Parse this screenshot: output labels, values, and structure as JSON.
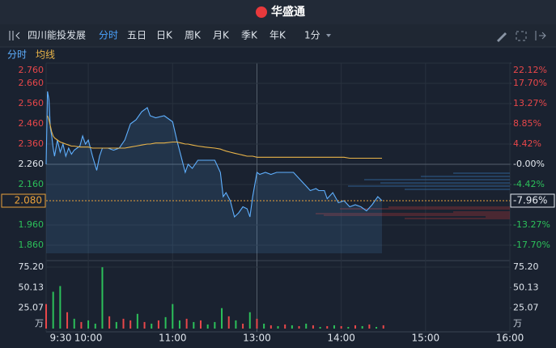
{
  "header": {
    "logo": "华盛通"
  },
  "toolbar": {
    "stock_name": "四川能投发展",
    "tabs": [
      "分时",
      "五日",
      "日K",
      "周K",
      "月K",
      "季K",
      "年K"
    ],
    "interval": "1分"
  },
  "subtabs": [
    "分时",
    "均线"
  ],
  "chart_data": [
    {
      "type": "line",
      "x": [
        0,
        1,
        2,
        3,
        4,
        5,
        6,
        8,
        10,
        12,
        14,
        16,
        18,
        20,
        24,
        26,
        28,
        30,
        33,
        36,
        38,
        40,
        44,
        48,
        52,
        56,
        60,
        64,
        68,
        72,
        74,
        78,
        84,
        90,
        93,
        96,
        99,
        101,
        104,
        108,
        113,
        120,
        124,
        126,
        128,
        131,
        134,
        137,
        140,
        143,
        145,
        147,
        150,
        152,
        156,
        160,
        164,
        170,
        176,
        180,
        184,
        188,
        192,
        194,
        198,
        200,
        204,
        208,
        212,
        216,
        220,
        224,
        228,
        232,
        236,
        239
      ],
      "series": [
        {
          "name": "分时",
          "color": "#5fb0ff",
          "values": [
            2.26,
            2.62,
            2.58,
            2.44,
            2.4,
            2.34,
            2.3,
            2.38,
            2.32,
            2.36,
            2.3,
            2.34,
            2.31,
            2.33,
            2.35,
            2.4,
            2.36,
            2.38,
            2.3,
            2.23,
            2.3,
            2.34,
            2.34,
            2.33,
            2.34,
            2.38,
            2.46,
            2.48,
            2.52,
            2.54,
            2.5,
            2.49,
            2.5,
            2.47,
            2.38,
            2.3,
            2.22,
            2.26,
            2.24,
            2.28,
            2.28,
            2.28,
            2.22,
            2.1,
            2.12,
            2.08,
            2.0,
            2.02,
            2.05,
            2.04,
            2.0,
            2.1,
            2.22,
            2.21,
            2.22,
            2.21,
            2.22,
            2.22,
            2.22,
            2.19,
            2.16,
            2.13,
            2.14,
            2.13,
            2.13,
            2.09,
            2.12,
            2.07,
            2.08,
            2.05,
            2.06,
            2.05,
            2.03,
            2.06,
            2.1,
            2.08
          ]
        },
        {
          "name": "均线",
          "color": "#e9b449",
          "values": [
            null,
            2.5,
            2.48,
            2.45,
            2.42,
            2.4,
            2.39,
            2.38,
            2.37,
            2.365,
            2.36,
            2.355,
            2.35,
            2.35,
            2.345,
            2.345,
            2.345,
            2.345,
            2.34,
            2.34,
            2.34,
            2.34,
            2.34,
            2.34,
            2.34,
            2.34,
            2.345,
            2.35,
            2.355,
            2.36,
            2.36,
            2.365,
            2.365,
            2.37,
            2.37,
            2.365,
            2.36,
            2.36,
            2.355,
            2.35,
            2.345,
            2.34,
            2.335,
            2.33,
            2.325,
            2.32,
            2.315,
            2.31,
            2.305,
            2.3,
            2.3,
            2.3,
            2.295,
            2.295,
            2.295,
            2.295,
            2.295,
            2.295,
            2.295,
            2.295,
            2.295,
            2.295,
            2.295,
            2.295,
            2.295,
            2.295,
            2.295,
            2.295,
            2.295,
            2.29,
            2.29,
            2.29,
            2.29,
            2.29,
            2.29,
            2.29
          ]
        }
      ],
      "xlim": [
        0,
        330
      ],
      "xticks": [
        {
          "value": 0,
          "label": "9:30"
        },
        {
          "value": 30,
          "label": "10:00"
        },
        {
          "value": 90,
          "label": "11:00"
        },
        {
          "value": 150,
          "label": "13:00"
        },
        {
          "value": 210,
          "label": "14:00"
        },
        {
          "value": 270,
          "label": "15:00"
        },
        {
          "value": 330,
          "label": "16:00"
        }
      ],
      "ylim": [
        1.82,
        2.76
      ],
      "yticks": [
        {
          "value": 2.76,
          "label": "2.760"
        },
        {
          "value": 2.66,
          "label": "2.660"
        },
        {
          "value": 2.56,
          "label": "2.560"
        },
        {
          "value": 2.46,
          "label": "2.460"
        },
        {
          "value": 2.36,
          "label": "2.360"
        },
        {
          "value": 2.26,
          "label": "2.260"
        },
        {
          "value": 2.16,
          "label": "2.160"
        },
        {
          "value": 1.96,
          "label": "1.960"
        },
        {
          "value": 1.86,
          "label": "1.860"
        }
      ],
      "y2lim": [
        -19.47,
        22.12
      ],
      "y2ticks": [
        {
          "value": 22.12,
          "label": "22.12%"
        },
        {
          "value": 17.7,
          "label": "17.70%"
        },
        {
          "value": 13.27,
          "label": "13.27%"
        },
        {
          "value": 8.85,
          "label": "8.85%"
        },
        {
          "value": 4.42,
          "label": "4.42%"
        },
        {
          "value": 0,
          "label": "-0.00%"
        },
        {
          "value": -4.42,
          "label": "-4.42%"
        },
        {
          "value": -13.27,
          "label": "-13.27%"
        },
        {
          "value": -17.7,
          "label": "-17.70%"
        }
      ],
      "last_price": {
        "value": 2.08,
        "label": "2.080"
      },
      "last_change": {
        "value": -7.96,
        "label": "-7.96%"
      },
      "grid": true
    },
    {
      "type": "bar",
      "x": [
        0,
        5,
        10,
        15,
        20,
        25,
        30,
        35,
        40,
        45,
        50,
        55,
        60,
        65,
        70,
        75,
        80,
        85,
        90,
        95,
        100,
        105,
        110,
        115,
        120,
        125,
        130,
        135,
        140,
        145,
        150,
        155,
        160,
        165,
        170,
        175,
        180,
        185,
        190,
        195,
        200,
        205,
        210,
        215,
        220,
        225,
        230,
        235,
        240
      ],
      "values": [
        30,
        45,
        52,
        20,
        12,
        8,
        10,
        6,
        75,
        15,
        8,
        12,
        10,
        18,
        8,
        6,
        10,
        14,
        30,
        10,
        12,
        8,
        10,
        5,
        8,
        25,
        15,
        10,
        6,
        20,
        12,
        6,
        4,
        3,
        5,
        4,
        3,
        6,
        4,
        2,
        3,
        4,
        3,
        2,
        4,
        3,
        5,
        2,
        4
      ],
      "colors": [
        "#e8474a",
        "#2cc05a",
        "#2cc05a",
        "#e8474a",
        "#2cc05a",
        "#e8474a",
        "#2cc05a",
        "#2cc05a",
        "#2cc05a",
        "#e8474a",
        "#2cc05a",
        "#e8474a",
        "#e8474a",
        "#2cc05a",
        "#e8474a",
        "#2cc05a",
        "#e8474a",
        "#2cc05a",
        "#2cc05a",
        "#2cc05a",
        "#e8474a",
        "#2cc05a",
        "#e8474a",
        "#2cc05a",
        "#2cc05a",
        "#2cc05a",
        "#e8474a",
        "#2cc05a",
        "#e8474a",
        "#2cc05a",
        "#e8474a",
        "#2cc05a",
        "#e8474a",
        "#2cc05a",
        "#e8474a",
        "#2cc05a",
        "#e8474a",
        "#2cc05a",
        "#e8474a",
        "#2cc05a",
        "#e8474a",
        "#2cc05a",
        "#e8474a",
        "#2cc05a",
        "#e8474a",
        "#2cc05a",
        "#e8474a",
        "#2cc05a",
        "#e8474a"
      ],
      "xlim": [
        0,
        330
      ],
      "ylim": [
        0,
        75.2
      ],
      "yticks": [
        25.07,
        50.13,
        {
          "value": 75.2,
          "label": "75.20"
        }
      ],
      "unit": "万"
    }
  ]
}
